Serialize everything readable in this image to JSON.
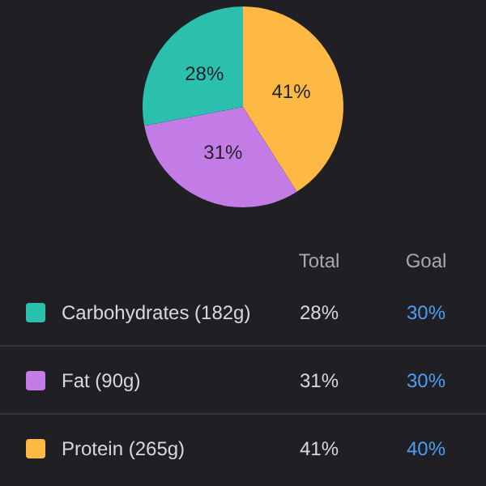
{
  "chart_data": {
    "type": "pie",
    "categories": [
      "Carbohydrates (182g)",
      "Fat (90g)",
      "Protein (265g)"
    ],
    "values": [
      28,
      31,
      41
    ],
    "colors": [
      "#2bbfae",
      "#c37be6",
      "#fdb944"
    ],
    "value_labels": [
      "28%",
      "31%",
      "41%"
    ],
    "legend": "bottom",
    "annotations": [
      "Total",
      "Goal",
      "30%",
      "30%",
      "40%"
    ]
  }
}
